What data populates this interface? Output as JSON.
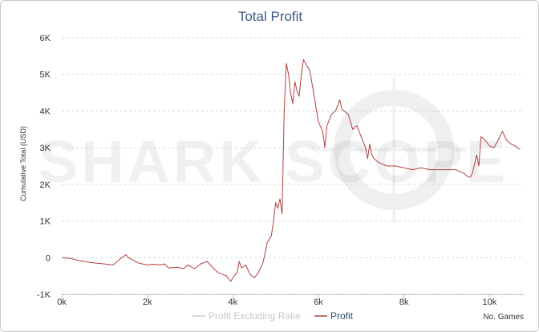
{
  "chart_data": {
    "type": "line",
    "title": "Total Profit",
    "xlabel": "No. Games",
    "ylabel": "Cumulative Total (USD)",
    "xlim": [
      0,
      10800
    ],
    "ylim": [
      -1000,
      6000
    ],
    "x_ticks": [
      0,
      2000,
      4000,
      6000,
      8000,
      10000
    ],
    "x_tick_labels": [
      "0k",
      "2k",
      "4k",
      "6k",
      "8k",
      "10k"
    ],
    "y_ticks": [
      -1000,
      0,
      1000,
      2000,
      3000,
      4000,
      5000,
      6000
    ],
    "y_tick_labels": [
      "-1K",
      "0",
      "1K",
      "2K",
      "3K",
      "4K",
      "5K",
      "6K"
    ],
    "grid": true,
    "legend_position": "bottom-center",
    "watermark": "SHARK SCOPE",
    "series": [
      {
        "name": "Profit Excluding Rake",
        "color": "#cccccc",
        "visible": false,
        "x": [],
        "y": []
      },
      {
        "name": "Profit",
        "color": "#b0413e",
        "visible": true,
        "x": [
          0,
          200,
          400,
          600,
          800,
          1000,
          1200,
          1300,
          1400,
          1500,
          1550,
          1650,
          1800,
          2000,
          2150,
          2300,
          2400,
          2500,
          2700,
          2850,
          2950,
          3100,
          3250,
          3400,
          3550,
          3650,
          3750,
          3850,
          3950,
          4000,
          4100,
          4150,
          4200,
          4300,
          4400,
          4500,
          4600,
          4700,
          4750,
          4800,
          4900,
          4950,
          5000,
          5050,
          5100,
          5150,
          5200,
          5250,
          5300,
          5350,
          5400,
          5450,
          5500,
          5550,
          5600,
          5650,
          5700,
          5800,
          5900,
          6000,
          6100,
          6150,
          6200,
          6300,
          6400,
          6500,
          6550,
          6600,
          6700,
          6800,
          6900,
          7000,
          7100,
          7150,
          7200,
          7250,
          7300,
          7400,
          7600,
          7800,
          8000,
          8200,
          8400,
          8600,
          8800,
          9000,
          9200,
          9400,
          9500,
          9550,
          9600,
          9700,
          9750,
          9800,
          9900,
          10000,
          10100,
          10200,
          10300,
          10400,
          10500,
          10600,
          10700
        ],
        "y": [
          0,
          -20,
          -80,
          -120,
          -150,
          -170,
          -200,
          -100,
          0,
          80,
          10,
          -60,
          -150,
          -200,
          -180,
          -200,
          -170,
          -280,
          -260,
          -300,
          -200,
          -300,
          -170,
          -100,
          -300,
          -400,
          -450,
          -500,
          -650,
          -550,
          -400,
          -100,
          -280,
          -200,
          -450,
          -550,
          -400,
          -150,
          100,
          400,
          600,
          1000,
          1500,
          1350,
          1600,
          1200,
          4000,
          5300,
          5000,
          4500,
          4200,
          4800,
          4550,
          4400,
          5000,
          5400,
          5300,
          5100,
          4400,
          3700,
          3450,
          3000,
          3600,
          3900,
          4000,
          4300,
          4050,
          4000,
          3900,
          3500,
          3600,
          3300,
          3000,
          2700,
          3100,
          2800,
          2700,
          2600,
          2500,
          2500,
          2450,
          2400,
          2450,
          2400,
          2400,
          2400,
          2400,
          2300,
          2200,
          2200,
          2300,
          2800,
          2500,
          3300,
          3200,
          3050,
          3000,
          3200,
          3450,
          3200,
          3100,
          3050,
          2950
        ]
      }
    ]
  }
}
